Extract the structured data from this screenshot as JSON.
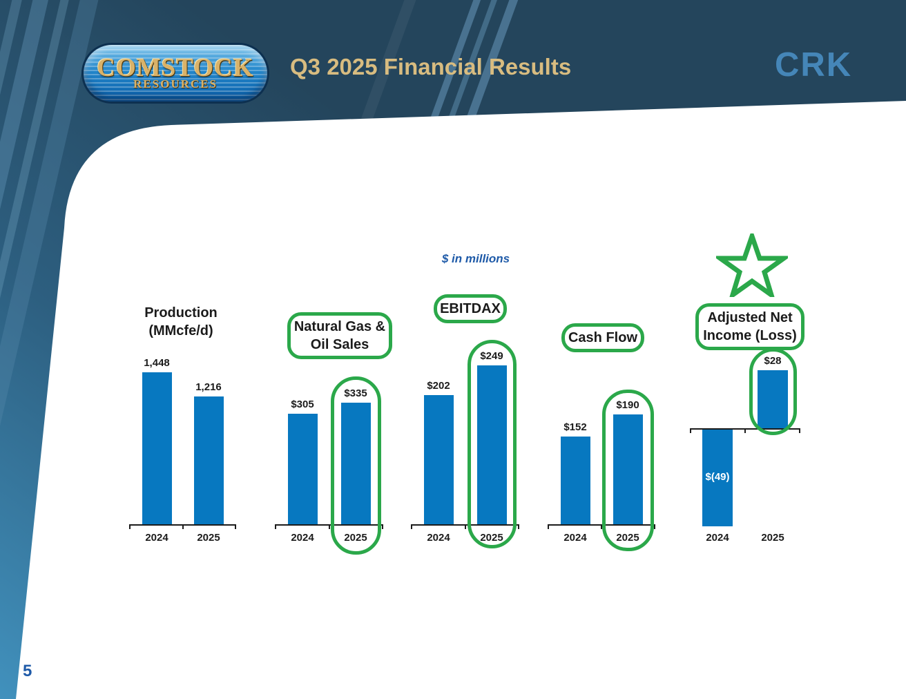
{
  "header": {
    "logo_line1": "COMSTOCK",
    "logo_line2": "RESOURCES",
    "title": "Q3 2025 Financial Results",
    "brand": "CRK"
  },
  "note": "$ in millions",
  "page_number": "5",
  "colors": {
    "bar_blue": "#0778C0",
    "highlight_green": "#2BA84A",
    "title_gold": "#D8BC80",
    "brand_blue": "#4586B8",
    "accent_blue": "#1E5AA8",
    "header_navy": "#23455C",
    "axis_black": "#1b1b1b"
  },
  "chart_data": [
    {
      "type": "bar",
      "title": "Production\n(MMcfe/d)",
      "categories": [
        "2024",
        "2025"
      ],
      "values": [
        1448,
        1216
      ],
      "value_labels": [
        "1,448",
        "1,216"
      ],
      "unit": "MMcfe/d",
      "highlighted_title": false,
      "highlighted_category": null,
      "star": false
    },
    {
      "type": "bar",
      "title": "Natural Gas &\nOil Sales",
      "categories": [
        "2024",
        "2025"
      ],
      "values": [
        305,
        335
      ],
      "value_labels": [
        "$305",
        "$335"
      ],
      "unit": "$ in millions",
      "highlighted_title": true,
      "highlighted_category": "2025",
      "star": false
    },
    {
      "type": "bar",
      "title": "EBITDAX",
      "categories": [
        "2024",
        "2025"
      ],
      "values": [
        202,
        249
      ],
      "value_labels": [
        "$202",
        "$249"
      ],
      "unit": "$ in millions",
      "highlighted_title": true,
      "highlighted_category": "2025",
      "star": false
    },
    {
      "type": "bar",
      "title": "Cash Flow",
      "categories": [
        "2024",
        "2025"
      ],
      "values": [
        152,
        190
      ],
      "value_labels": [
        "$152",
        "$190"
      ],
      "unit": "$ in millions",
      "highlighted_title": true,
      "highlighted_category": "2025",
      "star": false
    },
    {
      "type": "bar",
      "title": "Adjusted Net\nIncome (Loss)",
      "categories": [
        "2024",
        "2025"
      ],
      "values": [
        -49,
        28
      ],
      "value_labels": [
        "$(49)",
        "$28"
      ],
      "unit": "$ in millions",
      "highlighted_title": true,
      "highlighted_category": "2025",
      "star": true
    }
  ]
}
